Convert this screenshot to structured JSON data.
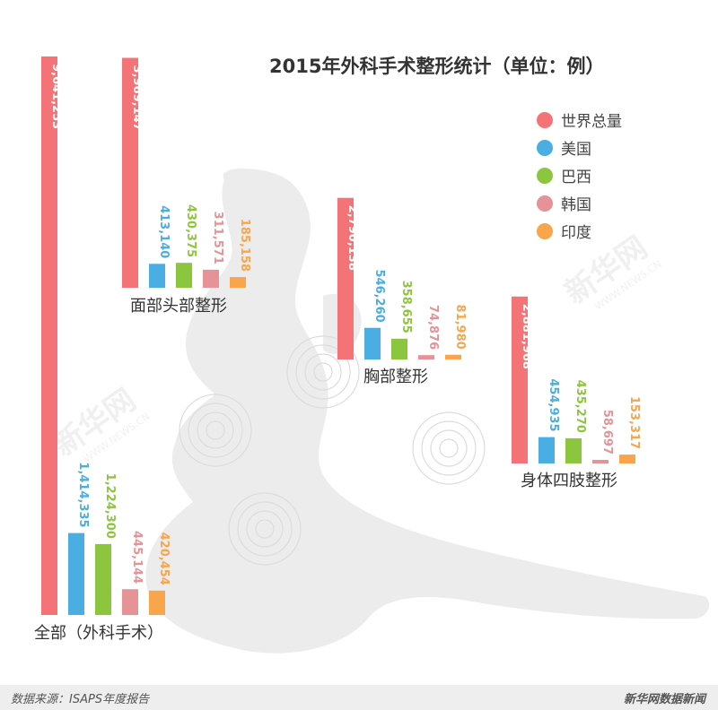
{
  "chart_data": {
    "type": "bar",
    "title": "2015年外科手术整形统计（单位：例）",
    "legend_position": "top-right",
    "series": [
      {
        "name": "世界总量",
        "color": "#f47376"
      },
      {
        "name": "美国",
        "color": "#4aaee3"
      },
      {
        "name": "巴西",
        "color": "#8cc63f"
      },
      {
        "name": "韩国",
        "color": "#e59397"
      },
      {
        "name": "印度",
        "color": "#f9a54c"
      }
    ],
    "groups": [
      {
        "label": "全部（外科手术）",
        "values": [
          9641253,
          1414335,
          1224300,
          445144,
          420454
        ],
        "value_labels": [
          "9,641,253",
          "1,414,335",
          "1,224,300",
          "445,144",
          "420,454"
        ]
      },
      {
        "label": "面部头部整形",
        "values": [
          3969147,
          413140,
          430375,
          311571,
          185158
        ],
        "value_labels": [
          "3,969,147",
          "413,140",
          "430,375",
          "311,571",
          "185,158"
        ]
      },
      {
        "label": "胸部整形",
        "values": [
          2790138,
          546260,
          358655,
          74876,
          81980
        ],
        "value_labels": [
          "2,790,138",
          "546,260",
          "358,655",
          "74,876",
          "81,980"
        ]
      },
      {
        "label": "身体四肢整形",
        "values": [
          2881968,
          454935,
          435270,
          58697,
          153317
        ],
        "value_labels": [
          "2,881,968",
          "454,935",
          "435,270",
          "58,697",
          "153,317"
        ]
      }
    ]
  },
  "footer": {
    "source": "数据来源：ISAPS年度报告",
    "brand": "新华网数据新闻"
  },
  "watermark": {
    "text": "新华网",
    "sub": "WWW.NEWS.CN"
  }
}
